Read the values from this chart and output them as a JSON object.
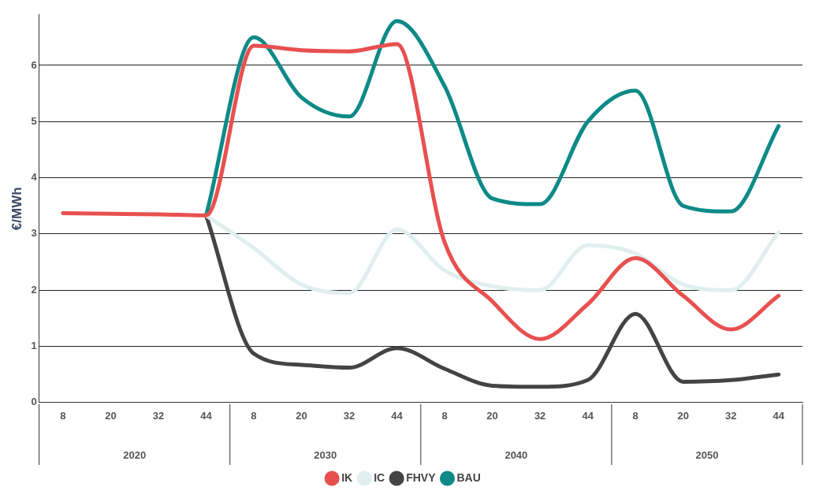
{
  "chart_data": {
    "type": "line",
    "ylabel": "€/MWh",
    "categories": [
      "8",
      "20",
      "32",
      "44",
      "8",
      "20",
      "32",
      "44",
      "8",
      "20",
      "32",
      "44",
      "8",
      "20",
      "32",
      "44"
    ],
    "annotations": [
      "2020",
      "2030",
      "2040",
      "2050"
    ],
    "series": [
      {
        "name": "BAU",
        "color": "#0e8a87",
        "values": [
          null,
          null,
          null,
          3.33,
          6.5,
          5.43,
          5.09,
          6.79,
          5.63,
          3.63,
          3.53,
          5.0,
          5.55,
          3.5,
          3.4,
          4.92
        ]
      },
      {
        "name": "FHVY",
        "color": "#444444",
        "values": [
          null,
          null,
          null,
          3.33,
          0.87,
          0.67,
          0.62,
          0.97,
          0.6,
          0.3,
          0.28,
          0.4,
          1.58,
          0.37,
          0.4,
          0.5
        ]
      },
      {
        "name": "IC",
        "color": "#e0eeee",
        "values": [
          null,
          null,
          null,
          3.33,
          2.75,
          2.1,
          1.95,
          3.08,
          2.35,
          2.07,
          2.0,
          2.8,
          2.65,
          2.1,
          2.0,
          3.03
        ]
      },
      {
        "name": "IK",
        "color": "#e8504f",
        "values": [
          3.37,
          3.36,
          3.35,
          3.33,
          6.35,
          6.27,
          6.25,
          6.38,
          2.85,
          1.8,
          1.13,
          1.75,
          2.57,
          1.9,
          1.3,
          1.9
        ]
      }
    ],
    "ylim": [
      0,
      6.9
    ],
    "yticks": [
      0,
      1,
      2,
      3,
      4,
      5,
      6
    ],
    "grid": "y",
    "legend": "bottom",
    "marker": "none"
  }
}
